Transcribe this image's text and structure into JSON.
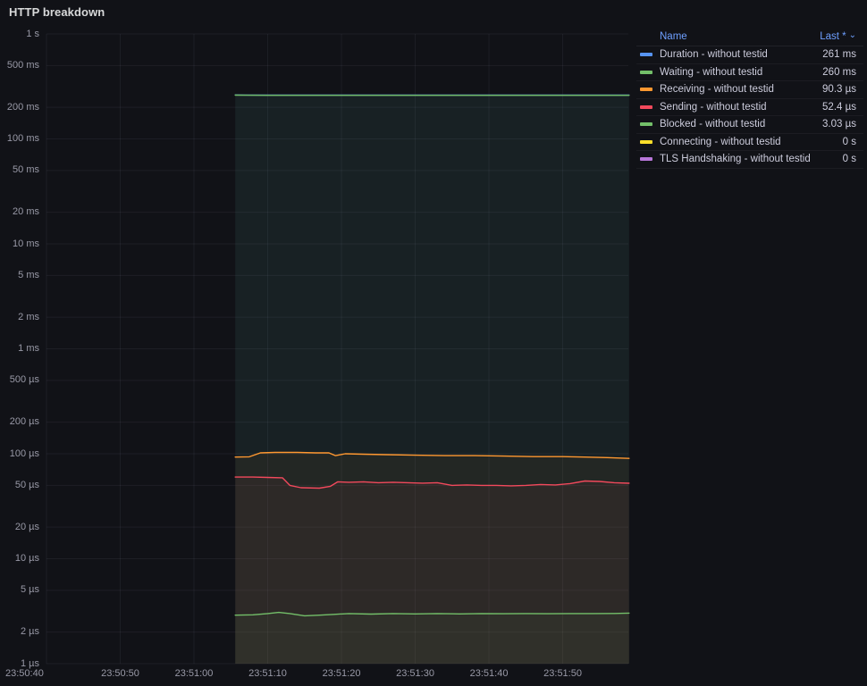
{
  "panel": {
    "title": "HTTP breakdown"
  },
  "legend": {
    "columns": {
      "name": "Name",
      "value": "Last *"
    },
    "sort_icon": "⌄"
  },
  "colors": {
    "background": "#111217",
    "grid": "rgba(204,204,220,0.07)",
    "axis_text": "rgba(204,204,220,0.72)",
    "legend_header": "#6E9FFF",
    "legend_text": "#CCCCDC"
  },
  "chart_data": {
    "type": "line",
    "title": "HTTP breakdown",
    "legend_position": "right-table",
    "grid": true,
    "fill_opacity": 0.05,
    "y_axis": {
      "scale": "log10",
      "unit": "duration (seconds)",
      "min": 1e-06,
      "max": 1,
      "ticks": [
        {
          "v": 1,
          "label": "1 s"
        },
        {
          "v": 0.5,
          "label": "500 ms"
        },
        {
          "v": 0.2,
          "label": "200 ms"
        },
        {
          "v": 0.1,
          "label": "100 ms"
        },
        {
          "v": 0.05,
          "label": "50 ms"
        },
        {
          "v": 0.02,
          "label": "20 ms"
        },
        {
          "v": 0.01,
          "label": "10 ms"
        },
        {
          "v": 0.005,
          "label": "5 ms"
        },
        {
          "v": 0.002,
          "label": "2 ms"
        },
        {
          "v": 0.001,
          "label": "1 ms"
        },
        {
          "v": 0.0005,
          "label": "500 µs"
        },
        {
          "v": 0.0002,
          "label": "200 µs"
        },
        {
          "v": 0.0001,
          "label": "100 µs"
        },
        {
          "v": 5e-05,
          "label": "50 µs"
        },
        {
          "v": 2e-05,
          "label": "20 µs"
        },
        {
          "v": 1e-05,
          "label": "10 µs"
        },
        {
          "v": 5e-06,
          "label": "5 µs"
        },
        {
          "v": 2e-06,
          "label": "2 µs"
        },
        {
          "v": 1e-06,
          "label": "1 µs"
        }
      ]
    },
    "x_axis": {
      "unit": "time",
      "min_t": 0,
      "max_t": 78.9,
      "ticks": [
        {
          "t": 0,
          "label": "23:50:40"
        },
        {
          "t": 10,
          "label": "23:50:50"
        },
        {
          "t": 20,
          "label": "23:51:00"
        },
        {
          "t": 30,
          "label": "23:51:10"
        },
        {
          "t": 40,
          "label": "23:51:20"
        },
        {
          "t": 50,
          "label": "23:51:30"
        },
        {
          "t": 60,
          "label": "23:51:40"
        },
        {
          "t": 70,
          "label": "23:51:50"
        }
      ]
    },
    "series": [
      {
        "name": "Duration - without testid",
        "color": "#5794F2",
        "last": "261 ms",
        "points": [
          [
            25.6,
            0.262
          ],
          [
            27,
            0.2615
          ],
          [
            30,
            0.261
          ],
          [
            79,
            0.261
          ]
        ]
      },
      {
        "name": "Waiting - without testid",
        "color": "#73BF69",
        "last": "260 ms",
        "points": [
          [
            25.6,
            0.261
          ],
          [
            27,
            0.2605
          ],
          [
            30,
            0.26
          ],
          [
            79,
            0.26
          ]
        ]
      },
      {
        "name": "Receiving - without testid",
        "color": "#FF9830",
        "last": "90.3 µs",
        "points": [
          [
            25.6,
            9.3e-05
          ],
          [
            27.5,
            9.35e-05
          ],
          [
            29,
            0.000102
          ],
          [
            31,
            0.000103
          ],
          [
            34,
            0.000103
          ],
          [
            36.5,
            0.000102
          ],
          [
            38.3,
            0.000102
          ],
          [
            39.2,
            9.6e-05
          ],
          [
            40.5,
            0.0001
          ],
          [
            43,
            9.9e-05
          ],
          [
            46,
            9.8e-05
          ],
          [
            50,
            9.7e-05
          ],
          [
            54,
            9.6e-05
          ],
          [
            58,
            9.6e-05
          ],
          [
            62,
            9.5e-05
          ],
          [
            66,
            9.4e-05
          ],
          [
            70,
            9.4e-05
          ],
          [
            73,
            9.3e-05
          ],
          [
            76,
            9.2e-05
          ],
          [
            79,
            9.03e-05
          ]
        ]
      },
      {
        "name": "Sending - without testid",
        "color": "#F2495C",
        "last": "52.4 µs",
        "points": [
          [
            25.6,
            6e-05
          ],
          [
            28,
            6e-05
          ],
          [
            30,
            5.95e-05
          ],
          [
            32,
            5.9e-05
          ],
          [
            33,
            5e-05
          ],
          [
            34.5,
            4.75e-05
          ],
          [
            37,
            4.7e-05
          ],
          [
            38.5,
            4.9e-05
          ],
          [
            39.5,
            5.4e-05
          ],
          [
            41,
            5.35e-05
          ],
          [
            43,
            5.4e-05
          ],
          [
            45,
            5.3e-05
          ],
          [
            47,
            5.35e-05
          ],
          [
            49,
            5.3e-05
          ],
          [
            51,
            5.25e-05
          ],
          [
            53,
            5.3e-05
          ],
          [
            55,
            5e-05
          ],
          [
            57,
            5.05e-05
          ],
          [
            59,
            5e-05
          ],
          [
            61,
            5e-05
          ],
          [
            63,
            4.95e-05
          ],
          [
            65,
            5e-05
          ],
          [
            67,
            5.1e-05
          ],
          [
            69,
            5.05e-05
          ],
          [
            71,
            5.2e-05
          ],
          [
            73,
            5.5e-05
          ],
          [
            75,
            5.45e-05
          ],
          [
            77,
            5.3e-05
          ],
          [
            79,
            5.24e-05
          ]
        ]
      },
      {
        "name": "Blocked - without testid",
        "color": "#73BF69",
        "last": "3.03 µs",
        "points": [
          [
            25.6,
            2.9e-06
          ],
          [
            28,
            2.92e-06
          ],
          [
            30,
            3e-06
          ],
          [
            31.5,
            3.08e-06
          ],
          [
            33,
            3e-06
          ],
          [
            35,
            2.86e-06
          ],
          [
            37,
            2.9e-06
          ],
          [
            39,
            2.95e-06
          ],
          [
            41,
            3e-06
          ],
          [
            44,
            2.97e-06
          ],
          [
            47,
            3e-06
          ],
          [
            50,
            2.98e-06
          ],
          [
            53,
            3e-06
          ],
          [
            56,
            2.98e-06
          ],
          [
            59,
            3e-06
          ],
          [
            62,
            2.99e-06
          ],
          [
            65,
            3e-06
          ],
          [
            68,
            2.99e-06
          ],
          [
            71,
            3e-06
          ],
          [
            74,
            3e-06
          ],
          [
            77,
            3.01e-06
          ],
          [
            79,
            3.03e-06
          ]
        ]
      },
      {
        "name": "Connecting - without testid",
        "color": "#FADE2A",
        "last": "0 s",
        "points": []
      },
      {
        "name": "TLS Handshaking - without testid",
        "color": "#B877D9",
        "last": "0 s",
        "points": []
      }
    ]
  }
}
